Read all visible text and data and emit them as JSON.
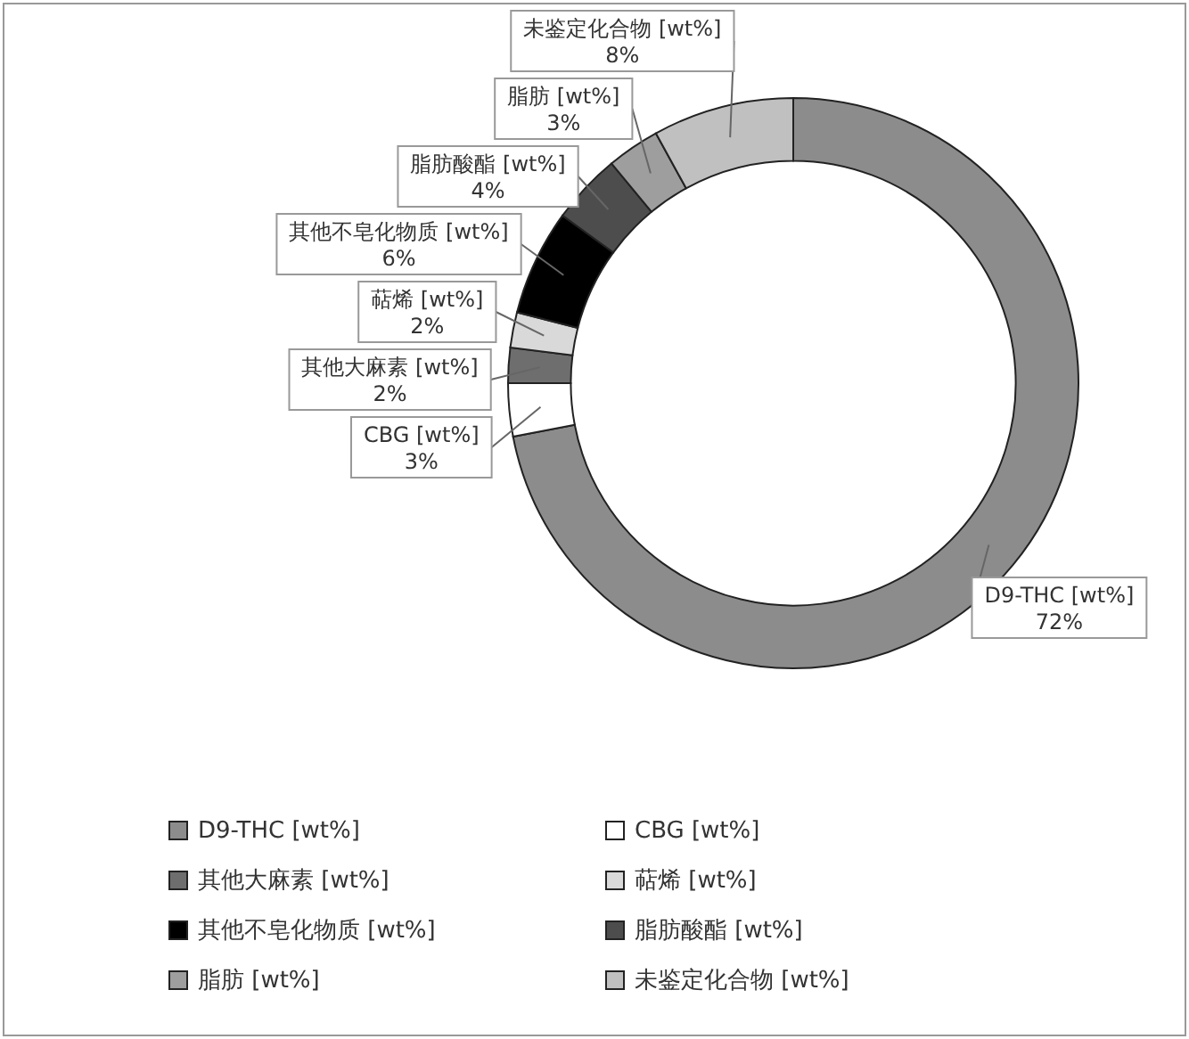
{
  "chart_data": {
    "type": "donut",
    "categories": [
      "D9-THC [wt%]",
      "CBG [wt%]",
      "其他大麻素 [wt%]",
      "萜烯 [wt%]",
      "其他不皂化物质 [wt%]",
      "脂肪酸酯 [wt%]",
      "脂肪 [wt%]",
      "未鉴定化合物 [wt%]"
    ],
    "values": [
      72,
      3,
      2,
      2,
      6,
      4,
      3,
      8
    ],
    "colors": [
      "#8c8c8c",
      "#ffffff",
      "#6e6e6e",
      "#d9d9d9",
      "#000000",
      "#4d4d4d",
      "#9e9e9e",
      "#c0c0c0"
    ],
    "value_labels": [
      "72%",
      "3%",
      "2%",
      "2%",
      "6%",
      "4%",
      "3%",
      "8%"
    ],
    "legend": "bottom"
  }
}
